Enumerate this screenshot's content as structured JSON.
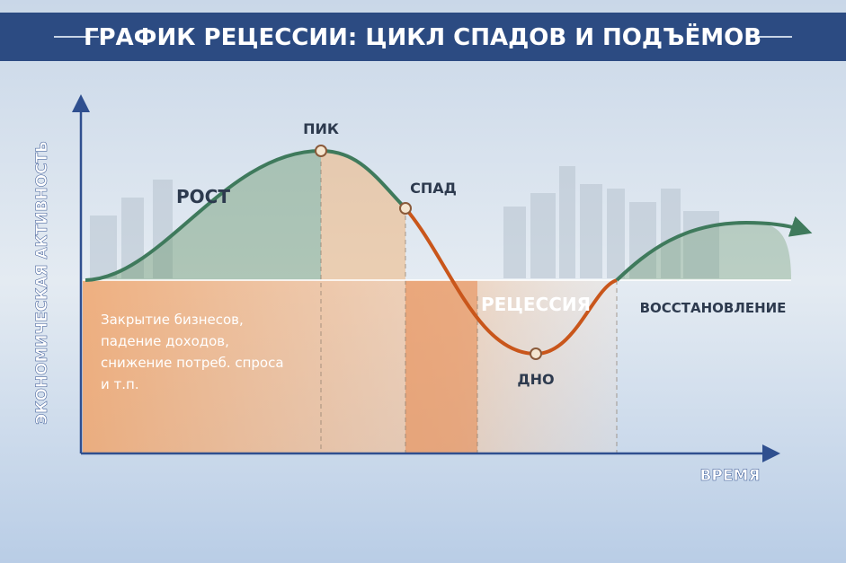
{
  "header": {
    "title": "ГРАФИК РЕЦЕССИИ: ЦИКЛ СПАДОВ И ПОДЪЁМОВ"
  },
  "axes": {
    "y_label": "ЭКОНОМИЧЕСКАЯ АКТИВНОСТЬ",
    "x_label": "ВРЕМЯ"
  },
  "phases": {
    "growth": "РОСТ",
    "peak": "ПИК",
    "decline": "СПАД",
    "recession": "РЕЦЕССИЯ",
    "trough": "ДНО",
    "recovery": "ВОССТАНОВЛЕНИЕ"
  },
  "description": [
    "Закрытие бизнесов,",
    "падение доходов,",
    "снижение потреб. спроса",
    "и т.п."
  ]
}
